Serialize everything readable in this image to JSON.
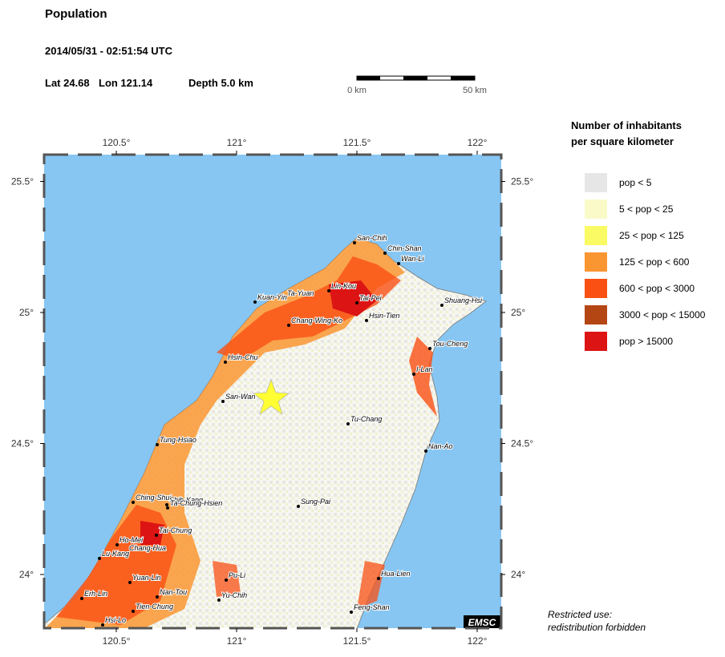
{
  "header": {
    "title": "Population",
    "datetime": "2014/05/31 - 02:51:54 UTC",
    "lat": "Lat 24.68",
    "lon": "Lon 121.14",
    "depth": "Depth  5.0 km"
  },
  "scale_bar": {
    "start_label": "0 km",
    "end_label": "50 km"
  },
  "map": {
    "lon_ticks": [
      {
        "value": 120.5,
        "label": "120.5°"
      },
      {
        "value": 121,
        "label": "121°"
      },
      {
        "value": 121.5,
        "label": "121.5°"
      },
      {
        "value": 122,
        "label": "122°"
      }
    ],
    "lat_ticks": [
      {
        "value": 25.5,
        "label": "25.5°"
      },
      {
        "value": 25,
        "label": "25°"
      },
      {
        "value": 24.5,
        "label": "24.5°"
      },
      {
        "value": 24,
        "label": "24°"
      }
    ],
    "cities": [
      "San-Chih",
      "Chin-Shan",
      "Wan-Li",
      "Ta-Yuan",
      "Lin-Kou",
      "Tai-Pei",
      "Kuan-Yin",
      "Shuang-Hsi",
      "Chang-Wing-Ko",
      "Hsin-Tien",
      "Tou-Cheng",
      "Hsin-Chu",
      "I-Lan",
      "San-Wan",
      "Tu-Chang",
      "Tung-Hsiao",
      "Nan-Ao",
      "Ching-Shui",
      "Shih-Kang",
      "Ta-Chung-Hsien",
      "Sung-Pai",
      "Tai-Chung",
      "Ho-Mei",
      "Chang-Hua",
      "Lu-Kang",
      "Pu-Li",
      "Hua-Lien",
      "Yuan-Lin",
      "Erh-Lin",
      "Nan-Tou",
      "Yu-Chih",
      "Tien-Chung",
      "Feng-Shan",
      "Hsi-Lo"
    ],
    "credit": "EMSC"
  },
  "legend": {
    "title": [
      "Number of inhabitants",
      "per square kilometer"
    ],
    "items": [
      {
        "label": "pop < 5",
        "color": "#e6e6e6"
      },
      {
        "label": "5 < pop < 25",
        "color": "#fafac8"
      },
      {
        "label": "25 < pop < 125",
        "color": "#fafa64"
      },
      {
        "label": "125 < pop < 600",
        "color": "#fa9632"
      },
      {
        "label": "600 < pop < 3000",
        "color": "#fa5014"
      },
      {
        "label": "3000 < pop < 15000",
        "color": "#b44614"
      },
      {
        "label": "pop > 15000",
        "color": "#dc1414"
      }
    ]
  },
  "note": [
    "Restricted use:",
    "redistribution forbidden"
  ]
}
